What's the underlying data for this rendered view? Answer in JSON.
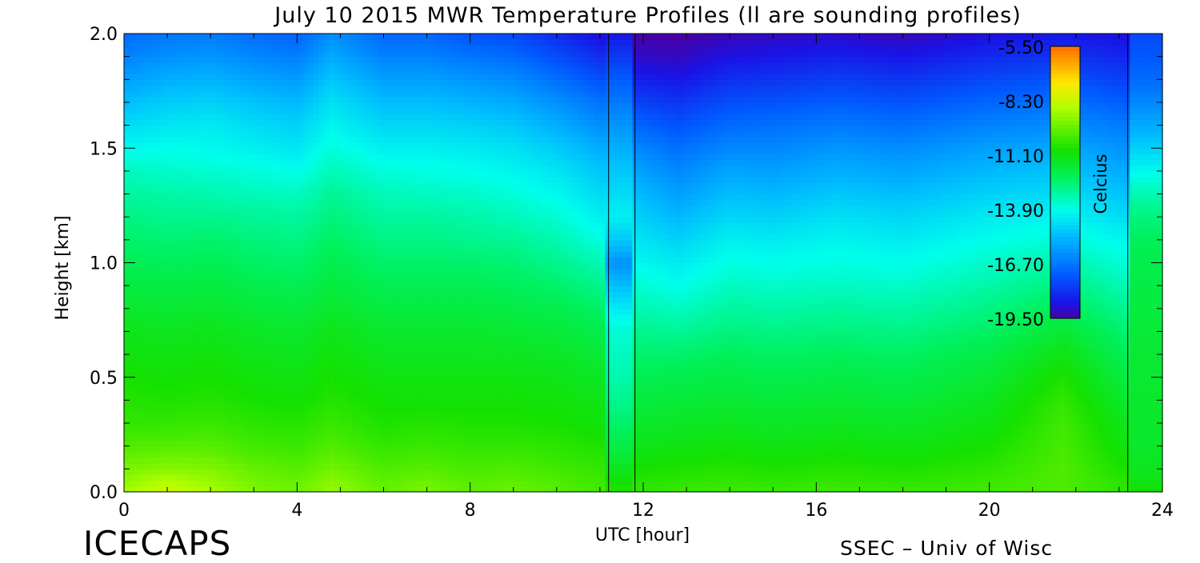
{
  "chart_data": {
    "type": "heatmap",
    "title": "July 10 2015 MWR Temperature Profiles (ll are sounding profiles)",
    "xlabel": "UTC [hour]",
    "ylabel": "Height [km]",
    "xlim": [
      0,
      24
    ],
    "ylim": [
      0,
      2.0
    ],
    "x_ticks": [
      "0",
      "4",
      "8",
      "12",
      "16",
      "20",
      "24"
    ],
    "y_ticks": [
      "0.0",
      "0.5",
      "1.0",
      "1.5",
      "2.0"
    ],
    "colorbar": {
      "label": "Celcius",
      "ticks": [
        "-5.50",
        "-8.30",
        "-11.10",
        "-13.90",
        "-16.70",
        "-19.50"
      ],
      "range": [
        -19.5,
        -5.5
      ]
    },
    "sounding_profiles_utc": [
      11.2,
      23.2
    ],
    "heights_km": [
      0.0,
      0.05,
      0.1,
      0.2,
      0.3,
      0.4,
      0.5,
      0.6,
      0.7,
      0.8,
      0.9,
      1.0,
      1.1,
      1.2,
      1.3,
      1.4,
      1.5,
      1.6,
      1.7,
      1.8,
      1.9,
      2.0
    ],
    "profiles": [
      {
        "utc": 0.0,
        "temps": [
          -8.8,
          -9.1,
          -9.4,
          -10.0,
          -10.4,
          -10.6,
          -10.8,
          -11.0,
          -11.2,
          -11.5,
          -11.8,
          -12.1,
          -12.4,
          -12.7,
          -13.0,
          -13.4,
          -14.0,
          -14.6,
          -15.2,
          -15.8,
          -16.4,
          -16.9
        ]
      },
      {
        "utc": 1.0,
        "temps": [
          -8.2,
          -8.6,
          -9.2,
          -9.9,
          -10.4,
          -10.7,
          -10.9,
          -11.1,
          -11.3,
          -11.6,
          -11.9,
          -12.2,
          -12.5,
          -12.8,
          -13.1,
          -13.5,
          -13.9,
          -14.4,
          -14.9,
          -15.5,
          -16.1,
          -16.7
        ]
      },
      {
        "utc": 2.0,
        "temps": [
          -8.7,
          -9.0,
          -9.3,
          -9.9,
          -10.3,
          -10.6,
          -10.8,
          -11.0,
          -11.2,
          -11.5,
          -11.8,
          -12.1,
          -12.4,
          -12.8,
          -13.2,
          -13.6,
          -14.0,
          -14.3,
          -14.8,
          -15.4,
          -16.0,
          -16.6
        ]
      },
      {
        "utc": 3.0,
        "temps": [
          -9.3,
          -9.5,
          -9.7,
          -10.2,
          -10.5,
          -10.8,
          -11.0,
          -11.2,
          -11.4,
          -11.7,
          -12.0,
          -12.3,
          -12.6,
          -12.9,
          -13.3,
          -13.7,
          -14.2,
          -14.6,
          -15.1,
          -15.7,
          -16.3,
          -16.9
        ]
      },
      {
        "utc": 4.0,
        "temps": [
          -9.6,
          -9.7,
          -9.9,
          -10.3,
          -10.6,
          -10.9,
          -11.1,
          -11.3,
          -11.5,
          -11.8,
          -12.1,
          -12.4,
          -12.7,
          -13.0,
          -13.4,
          -13.9,
          -14.4,
          -14.8,
          -15.3,
          -15.9,
          -16.5,
          -17.1
        ]
      },
      {
        "utc": 4.8,
        "temps": [
          -9.0,
          -9.2,
          -9.5,
          -10.0,
          -10.3,
          -10.6,
          -10.8,
          -11.0,
          -11.2,
          -11.5,
          -11.8,
          -12.0,
          -12.3,
          -12.6,
          -12.9,
          -13.3,
          -13.7,
          -14.1,
          -14.5,
          -15.0,
          -15.6,
          -16.2
        ]
      },
      {
        "utc": 6.0,
        "temps": [
          -9.7,
          -9.8,
          -10.0,
          -10.4,
          -10.7,
          -10.9,
          -11.1,
          -11.3,
          -11.5,
          -11.8,
          -12.1,
          -12.4,
          -12.7,
          -13.0,
          -13.3,
          -13.7,
          -14.2,
          -14.7,
          -15.2,
          -15.8,
          -16.4,
          -17.0
        ]
      },
      {
        "utc": 7.0,
        "temps": [
          -9.4,
          -9.6,
          -9.9,
          -10.3,
          -10.6,
          -10.9,
          -11.1,
          -11.3,
          -11.5,
          -11.8,
          -12.1,
          -12.4,
          -12.7,
          -13.0,
          -13.4,
          -13.8,
          -14.2,
          -14.7,
          -15.2,
          -15.8,
          -16.4,
          -17.0
        ]
      },
      {
        "utc": 8.0,
        "temps": [
          -9.8,
          -9.9,
          -10.1,
          -10.4,
          -10.7,
          -10.9,
          -11.1,
          -11.3,
          -11.5,
          -11.8,
          -12.1,
          -12.4,
          -12.8,
          -13.1,
          -13.5,
          -13.9,
          -14.3,
          -14.8,
          -15.4,
          -16.0,
          -16.7,
          -17.4
        ]
      },
      {
        "utc": 9.0,
        "temps": [
          -9.6,
          -9.8,
          -10.0,
          -10.4,
          -10.7,
          -10.9,
          -11.1,
          -11.3,
          -11.6,
          -11.9,
          -12.2,
          -12.5,
          -12.9,
          -13.3,
          -13.7,
          -14.1,
          -14.5,
          -15.0,
          -15.6,
          -16.2,
          -16.9,
          -17.6
        ]
      },
      {
        "utc": 10.0,
        "temps": [
          -9.9,
          -10.0,
          -10.2,
          -10.5,
          -10.8,
          -11.0,
          -11.2,
          -11.4,
          -11.7,
          -12.0,
          -12.4,
          -12.8,
          -13.2,
          -13.6,
          -14.0,
          -14.4,
          -14.9,
          -15.5,
          -16.1,
          -16.8,
          -17.5,
          -18.2
        ]
      },
      {
        "utc": 11.1,
        "temps": [
          -10.2,
          -10.3,
          -10.4,
          -10.7,
          -11.0,
          -11.2,
          -11.4,
          -11.7,
          -12.0,
          -12.4,
          -12.8,
          -13.3,
          -13.8,
          -14.3,
          -14.7,
          -15.1,
          -15.6,
          -16.2,
          -16.8,
          -17.5,
          -18.2,
          -18.9
        ]
      },
      {
        "utc": 11.2,
        "temps": [
          -10.6,
          -10.9,
          -11.3,
          -11.9,
          -12.4,
          -12.8,
          -13.2,
          -13.4,
          -13.6,
          -14.3,
          -15.2,
          -16.1,
          -15.0,
          -14.2,
          -14.6,
          -15.0,
          -15.5,
          -16.0,
          -16.6,
          -17.2,
          -17.9,
          -18.6
        ]
      },
      {
        "utc": 11.8,
        "temps": [
          -10.6,
          -10.9,
          -11.3,
          -11.9,
          -12.4,
          -12.8,
          -13.2,
          -13.4,
          -13.6,
          -14.3,
          -15.2,
          -16.1,
          -15.0,
          -14.2,
          -14.6,
          -15.0,
          -15.5,
          -16.0,
          -16.6,
          -17.2,
          -17.9,
          -18.6
        ]
      },
      {
        "utc": 11.81,
        "temps": [
          -10.4,
          -10.6,
          -10.8,
          -11.2,
          -11.5,
          -11.8,
          -12.1,
          -12.4,
          -12.8,
          -13.2,
          -13.6,
          -14.0,
          -14.4,
          -14.8,
          -15.2,
          -15.7,
          -16.3,
          -17.0,
          -17.7,
          -18.4,
          -19.0,
          -19.4
        ]
      },
      {
        "utc": 12.8,
        "temps": [
          -10.3,
          -10.5,
          -10.7,
          -11.1,
          -11.4,
          -11.7,
          -12.0,
          -12.4,
          -12.9,
          -13.4,
          -13.9,
          -14.3,
          -14.8,
          -15.3,
          -15.8,
          -16.3,
          -16.8,
          -17.4,
          -18.0,
          -18.6,
          -19.1,
          -19.5
        ]
      },
      {
        "utc": 14.0,
        "temps": [
          -10.2,
          -10.4,
          -10.6,
          -11.0,
          -11.3,
          -11.6,
          -11.9,
          -12.2,
          -12.6,
          -13.0,
          -13.4,
          -13.8,
          -14.2,
          -14.7,
          -15.2,
          -15.7,
          -16.3,
          -16.9,
          -17.5,
          -18.1,
          -18.7,
          -19.2
        ]
      },
      {
        "utc": 15.0,
        "temps": [
          -10.3,
          -10.5,
          -10.7,
          -11.1,
          -11.4,
          -11.7,
          -12.0,
          -12.3,
          -12.7,
          -13.1,
          -13.5,
          -13.9,
          -14.3,
          -14.8,
          -15.3,
          -15.8,
          -16.3,
          -16.8,
          -17.4,
          -18.0,
          -18.6,
          -19.1
        ]
      },
      {
        "utc": 16.5,
        "temps": [
          -10.2,
          -10.4,
          -10.6,
          -11.0,
          -11.3,
          -11.6,
          -11.9,
          -12.2,
          -12.6,
          -13.0,
          -13.4,
          -13.8,
          -14.1,
          -14.5,
          -15.0,
          -15.5,
          -16.0,
          -16.6,
          -17.2,
          -17.8,
          -18.4,
          -19.0
        ]
      },
      {
        "utc": 18.0,
        "temps": [
          -10.3,
          -10.5,
          -10.7,
          -11.1,
          -11.4,
          -11.7,
          -12.0,
          -12.3,
          -12.7,
          -13.1,
          -13.5,
          -13.9,
          -14.3,
          -14.7,
          -15.2,
          -15.7,
          -16.2,
          -16.8,
          -17.4,
          -18.0,
          -18.6,
          -19.2
        ]
      },
      {
        "utc": 20.0,
        "temps": [
          -10.2,
          -10.3,
          -10.5,
          -10.8,
          -11.1,
          -11.3,
          -11.6,
          -11.9,
          -12.3,
          -12.7,
          -13.1,
          -13.5,
          -13.9,
          -14.3,
          -14.8,
          -15.3,
          -15.8,
          -16.4,
          -17.0,
          -17.6,
          -18.2,
          -18.8
        ]
      },
      {
        "utc": 21.7,
        "temps": [
          -10.0,
          -10.0,
          -10.0,
          -10.1,
          -10.2,
          -10.4,
          -10.7,
          -11.1,
          -11.6,
          -12.1,
          -12.6,
          -13.1,
          -13.6,
          -14.1,
          -14.6,
          -15.1,
          -15.6,
          -16.2,
          -16.8,
          -17.4,
          -18.0,
          -18.6
        ]
      },
      {
        "utc": 23.19,
        "temps": [
          -10.5,
          -10.6,
          -10.8,
          -11.1,
          -11.3,
          -11.6,
          -11.9,
          -12.2,
          -12.5,
          -12.9,
          -13.3,
          -13.7,
          -14.1,
          -14.6,
          -15.1,
          -15.6,
          -16.1,
          -16.6,
          -17.2,
          -17.8,
          -18.3,
          -18.8
        ]
      },
      {
        "utc": 23.2,
        "temps": [
          -10.9,
          -11.1,
          -11.3,
          -11.5,
          -11.5,
          -11.5,
          -11.6,
          -11.6,
          -11.7,
          -11.8,
          -11.9,
          -12.0,
          -12.2,
          -12.6,
          -13.2,
          -14.0,
          -14.8,
          -15.6,
          -16.3,
          -16.9,
          -17.3,
          -17.6
        ]
      },
      {
        "utc": 24.0,
        "temps": [
          -10.9,
          -11.1,
          -11.3,
          -11.5,
          -11.5,
          -11.5,
          -11.6,
          -11.6,
          -11.7,
          -11.8,
          -11.9,
          -12.0,
          -12.2,
          -12.6,
          -13.2,
          -14.0,
          -14.8,
          -15.6,
          -16.3,
          -16.9,
          -17.3,
          -17.6
        ]
      }
    ]
  },
  "branding": {
    "left": "ICECAPS",
    "right": "SSEC – Univ of Wisc"
  }
}
